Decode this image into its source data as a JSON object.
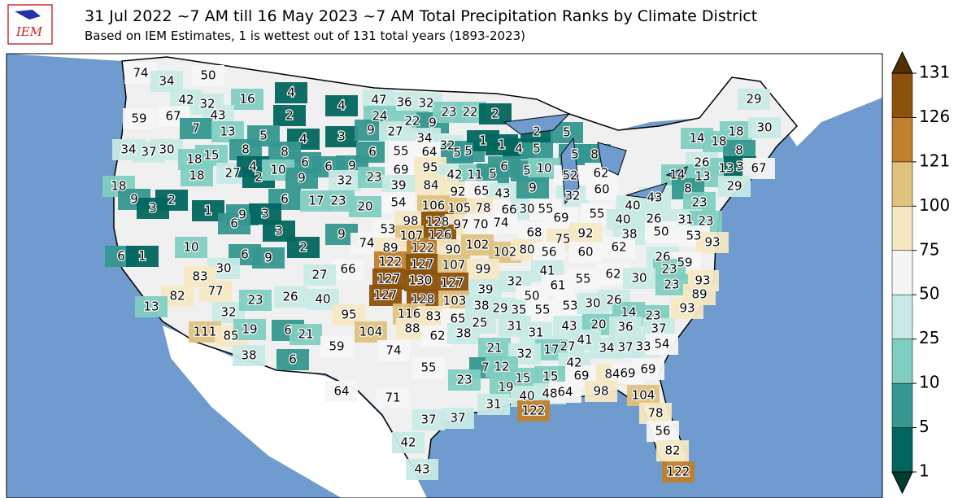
{
  "header": {
    "title": "31 Jul 2022 ~7 AM till 16 May 2023 ~7 AM Total Precipitation Ranks by Climate District",
    "subtitle": "Based on IEM Estimates, 1 is wettest out of 131 total years (1893-2023)",
    "logo_text": "IEM"
  },
  "colorbar": {
    "ticks": [
      1,
      5,
      10,
      25,
      50,
      75,
      100,
      121,
      126,
      131
    ],
    "colors": [
      "#01665e",
      "#35978f",
      "#80cdc1",
      "#c7eae5",
      "#f5f5f5",
      "#f6e8c3",
      "#dfc27d",
      "#bf812d",
      "#8c510a"
    ],
    "under_color": "#003c30",
    "over_color": "#543005"
  },
  "districts": [
    74,
    34,
    50,
    42,
    32,
    16,
    4,
    4,
    47,
    36,
    32,
    59,
    67,
    43,
    2,
    24,
    22,
    9,
    23,
    22,
    2,
    29,
    7,
    13,
    5,
    4,
    3,
    9,
    27,
    34,
    32,
    5,
    1,
    1,
    4,
    5,
    2,
    5,
    14,
    18,
    18,
    30,
    34,
    37,
    30,
    18,
    15,
    8,
    8,
    6,
    6,
    9,
    6,
    55,
    64,
    5,
    5,
    8,
    8,
    6,
    5,
    10,
    26,
    18,
    27,
    4,
    2,
    10,
    9,
    32,
    23,
    69,
    95,
    42,
    11,
    5,
    52,
    62,
    14,
    13,
    13,
    3,
    67,
    18,
    9,
    2,
    3,
    1,
    6,
    17,
    23,
    39,
    84,
    92,
    65,
    43,
    9,
    32,
    60,
    8,
    29,
    20,
    54,
    106,
    105,
    78,
    66,
    30,
    55,
    40,
    43,
    23,
    55,
    9,
    3,
    6,
    3,
    2,
    9,
    53,
    98,
    128,
    97,
    70,
    74,
    69,
    40,
    26,
    31,
    23,
    68,
    75,
    92,
    38,
    50,
    53,
    93,
    74,
    107,
    126,
    10,
    6,
    9,
    66,
    89,
    122,
    90,
    102,
    102,
    80,
    56,
    60,
    62,
    26,
    59,
    6,
    1,
    30,
    27,
    122,
    127,
    107,
    99,
    41,
    23,
    83,
    127,
    130,
    127,
    32,
    61,
    55,
    62,
    30,
    93,
    77,
    82,
    26,
    40,
    127,
    128,
    103,
    39,
    50,
    23,
    89,
    13,
    32,
    23,
    95,
    116,
    83,
    65,
    38,
    29,
    35,
    55,
    53,
    30,
    26,
    93,
    14,
    23,
    25,
    31,
    88,
    62,
    38,
    43,
    20,
    36,
    37,
    111,
    85,
    19,
    6,
    21,
    104,
    59,
    74,
    31,
    41,
    34,
    37,
    33,
    54,
    38,
    6,
    21,
    27,
    17,
    32,
    55,
    7,
    12,
    42,
    23,
    15,
    15,
    69,
    84,
    69,
    69,
    64,
    71,
    19,
    40,
    48,
    64,
    98,
    104,
    31,
    122,
    37,
    37,
    78,
    56,
    42,
    82,
    43,
    122
  ]
}
